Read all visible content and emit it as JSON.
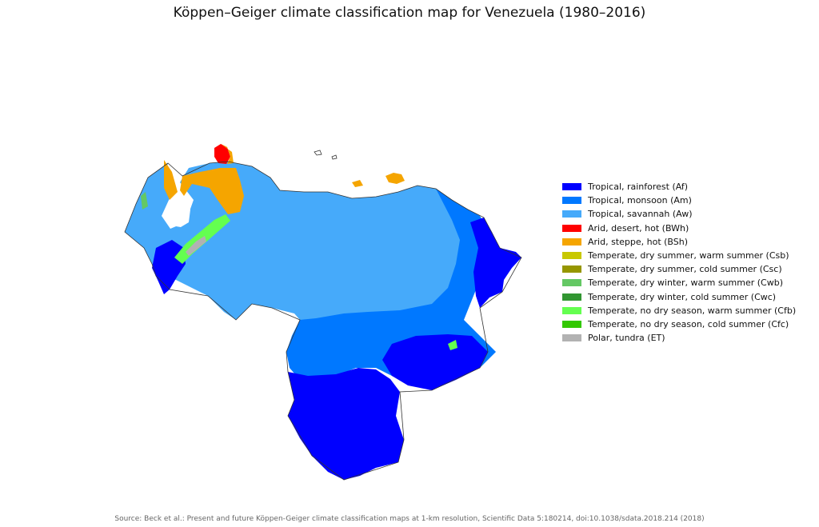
{
  "title": "Köppen–Geiger climate classification map for Venezuela (1980–2016)",
  "source": "Source: Beck et al.: Present and future Köppen-Geiger climate classification maps at 1-km resolution, Scientific Data 5:180214, doi:10.1038/sdata.2018.214 (2018)",
  "legend": [
    {
      "label": "Tropical, rainforest (Af)",
      "color": "#0000ff"
    },
    {
      "label": "Tropical, monsoon (Am)",
      "color": "#0078ff"
    },
    {
      "label": "Tropical, savannah (Aw)",
      "color": "#46aafa"
    },
    {
      "label": "Arid, desert, hot (BWh)",
      "color": "#ff0000"
    },
    {
      "label": "Arid, steppe, hot (BSh)",
      "color": "#f5a500"
    },
    {
      "label": "Temperate, dry summer, warm summer (Csb)",
      "color": "#c8c800"
    },
    {
      "label": "Temperate, dry summer, cold summer (Csc)",
      "color": "#969600"
    },
    {
      "label": "Temperate, dry winter, warm summer (Cwb)",
      "color": "#64c864"
    },
    {
      "label": "Temperate, dry winter, cold summer (Cwc)",
      "color": "#329632"
    },
    {
      "label": "Temperate, no dry season, warm summer (Cfb)",
      "color": "#64ff50"
    },
    {
      "label": "Temperate, no dry season, cold summer (Cfc)",
      "color": "#32c800"
    },
    {
      "label": "Polar, tundra (ET)",
      "color": "#b2b2b2"
    }
  ]
}
